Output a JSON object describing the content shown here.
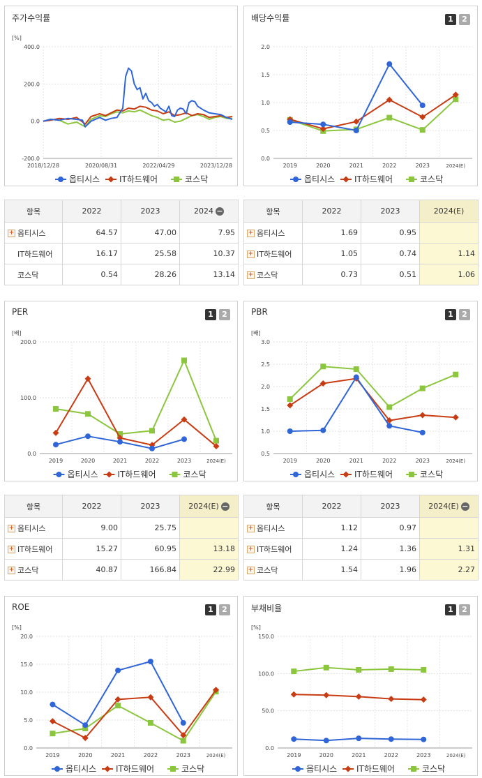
{
  "colors": {
    "opti": "#2f65d6",
    "ithw": "#c83c14",
    "kosdaq": "#8cc63e"
  },
  "legend": [
    "옵티시스",
    "IT하드웨어",
    "코스닥"
  ],
  "panels": {
    "stock": {
      "title": "주가수익률"
    },
    "dividend": {
      "title": "배당수익률",
      "btn1": "1",
      "btn2": "2"
    },
    "per": {
      "title": "PER",
      "btn1": "1",
      "btn2": "2"
    },
    "pbr": {
      "title": "PBR",
      "btn1": "1",
      "btn2": "2"
    },
    "roe": {
      "title": "ROE",
      "btn1": "1",
      "btn2": "2"
    },
    "debt": {
      "title": "부채비율",
      "btn1": "1",
      "btn2": "2"
    }
  },
  "tables": {
    "stock": {
      "headers": [
        "항목",
        "2022",
        "2023",
        "2024"
      ],
      "rows": [
        {
          "name": "옵티시스",
          "v": [
            "64.57",
            "47.00",
            "7.95"
          ]
        },
        {
          "name": "IT하드웨어",
          "v": [
            "16.17",
            "25.58",
            "10.37"
          ]
        },
        {
          "name": "코스닥",
          "v": [
            "0.54",
            "28.26",
            "13.14"
          ]
        }
      ]
    },
    "dividend": {
      "headers": [
        "항목",
        "2022",
        "2023",
        "2024(E)"
      ],
      "rows": [
        {
          "name": "옵티시스",
          "v": [
            "1.69",
            "0.95",
            ""
          ]
        },
        {
          "name": "IT하드웨어",
          "v": [
            "1.05",
            "0.74",
            "1.14"
          ]
        },
        {
          "name": "코스닥",
          "v": [
            "0.73",
            "0.51",
            "1.06"
          ]
        }
      ]
    },
    "per": {
      "headers": [
        "항목",
        "2022",
        "2023",
        "2024(E)"
      ],
      "rows": [
        {
          "name": "옵티시스",
          "v": [
            "9.00",
            "25.75",
            ""
          ]
        },
        {
          "name": "IT하드웨어",
          "v": [
            "15.27",
            "60.95",
            "13.18"
          ]
        },
        {
          "name": "코스닥",
          "v": [
            "40.87",
            "166.84",
            "22.99"
          ]
        }
      ]
    },
    "pbr": {
      "headers": [
        "항목",
        "2022",
        "2023",
        "2024(E)"
      ],
      "rows": [
        {
          "name": "옵티시스",
          "v": [
            "1.12",
            "0.97",
            ""
          ]
        },
        {
          "name": "IT하드웨어",
          "v": [
            "1.24",
            "1.36",
            "1.31"
          ]
        },
        {
          "name": "코스닥",
          "v": [
            "1.54",
            "1.96",
            "2.27"
          ]
        }
      ]
    }
  },
  "chart_data": [
    {
      "id": "stock",
      "type": "line",
      "title": "주가수익률",
      "unit": "[%]",
      "ylim": [
        -200,
        400
      ],
      "yticks": [
        "400.0",
        "200.0",
        "0.0",
        "-200.0"
      ],
      "xticks": [
        "2018/12/28",
        "2020/08/31",
        "2022/04/29",
        "2023/12/28"
      ],
      "x_range": [
        "2018/12/28",
        "2024/06"
      ],
      "series": [
        {
          "name": "옵티시스",
          "x": [
            "2018/12/28",
            "2019/03",
            "2019/06",
            "2019/09",
            "2019/12",
            "2020/02",
            "2020/03",
            "2020/05",
            "2020/08",
            "2020/10",
            "2020/12",
            "2021/02",
            "2021/04",
            "2021/05",
            "2021/06",
            "2021/07",
            "2021/08",
            "2021/09",
            "2021/10",
            "2021/11",
            "2021/12",
            "2022/01",
            "2022/02",
            "2022/03",
            "2022/04",
            "2022/05",
            "2022/06",
            "2022/07",
            "2022/08",
            "2022/09",
            "2022/10",
            "2022/11",
            "2022/12",
            "2023/01",
            "2023/02",
            "2023/03",
            "2023/04",
            "2023/05",
            "2023/06",
            "2023/08",
            "2023/10",
            "2023/12",
            "2024/02",
            "2024/04",
            "2024/06"
          ],
          "values": [
            0,
            10,
            5,
            15,
            10,
            5,
            -30,
            0,
            20,
            5,
            15,
            20,
            70,
            240,
            285,
            270,
            200,
            170,
            180,
            120,
            150,
            110,
            100,
            80,
            90,
            70,
            60,
            50,
            80,
            30,
            25,
            60,
            70,
            65,
            40,
            100,
            110,
            105,
            80,
            60,
            45,
            40,
            35,
            20,
            10
          ]
        },
        {
          "name": "IT하드웨어",
          "x": [
            "2018/12/28",
            "2019/03",
            "2019/06",
            "2019/09",
            "2019/12",
            "2020/03",
            "2020/05",
            "2020/08",
            "2020/10",
            "2020/12",
            "2021/02",
            "2021/04",
            "2021/06",
            "2021/08",
            "2021/10",
            "2021/12",
            "2022/02",
            "2022/04",
            "2022/06",
            "2022/08",
            "2022/10",
            "2022/12",
            "2023/02",
            "2023/04",
            "2023/06",
            "2023/08",
            "2023/10",
            "2023/12",
            "2024/02",
            "2024/04",
            "2024/06"
          ],
          "values": [
            0,
            5,
            15,
            10,
            20,
            -15,
            25,
            40,
            30,
            45,
            60,
            55,
            70,
            65,
            80,
            75,
            60,
            55,
            40,
            50,
            30,
            35,
            45,
            30,
            40,
            35,
            20,
            25,
            30,
            20,
            25
          ]
        },
        {
          "name": "코스닥",
          "x": [
            "2018/12/28",
            "2019/03",
            "2019/06",
            "2019/09",
            "2019/12",
            "2020/03",
            "2020/05",
            "2020/08",
            "2020/10",
            "2020/12",
            "2021/02",
            "2021/04",
            "2021/06",
            "2021/08",
            "2021/10",
            "2021/12",
            "2022/02",
            "2022/04",
            "2022/06",
            "2022/08",
            "2022/10",
            "2022/12",
            "2023/02",
            "2023/04",
            "2023/06",
            "2023/08",
            "2023/10",
            "2023/12",
            "2024/02",
            "2024/04",
            "2024/06"
          ],
          "values": [
            0,
            10,
            5,
            -15,
            -5,
            -30,
            10,
            30,
            25,
            40,
            50,
            45,
            55,
            50,
            60,
            45,
            30,
            20,
            5,
            10,
            -5,
            0,
            15,
            30,
            35,
            25,
            10,
            20,
            25,
            15,
            15
          ]
        }
      ]
    },
    {
      "id": "dividend",
      "type": "line",
      "title": "배당수익률",
      "ylim": [
        0,
        2
      ],
      "yticks": [
        "2.0",
        "1.5",
        "1.0",
        "0.5",
        "0.0"
      ],
      "categories": [
        "2019",
        "2020",
        "2021",
        "2022",
        "2023",
        "2024(E)"
      ],
      "series": [
        {
          "name": "옵티시스",
          "values": [
            0.65,
            0.61,
            0.5,
            1.69,
            0.95,
            null
          ]
        },
        {
          "name": "IT하드웨어",
          "values": [
            0.7,
            0.53,
            0.66,
            1.05,
            0.74,
            1.14
          ]
        },
        {
          "name": "코스닥",
          "values": [
            0.69,
            0.49,
            0.52,
            0.73,
            0.51,
            1.06
          ]
        }
      ]
    },
    {
      "id": "per",
      "type": "line",
      "title": "PER",
      "unit": "[배]",
      "ylim": [
        0,
        200
      ],
      "yticks": [
        "200.0",
        "100.0",
        "0.0"
      ],
      "categories": [
        "2019",
        "2020",
        "2021",
        "2022",
        "2023",
        "2024(E)"
      ],
      "series": [
        {
          "name": "옵티시스",
          "values": [
            16,
            31,
            21,
            9.0,
            25.75,
            null
          ]
        },
        {
          "name": "IT하드웨어",
          "values": [
            37,
            134,
            28,
            15.27,
            60.95,
            13.18
          ]
        },
        {
          "name": "코스닥",
          "values": [
            80,
            71,
            35,
            40.87,
            166.84,
            22.99
          ]
        }
      ]
    },
    {
      "id": "pbr",
      "type": "line",
      "title": "PBR",
      "unit": "[배]",
      "ylim": [
        0.5,
        3
      ],
      "yticks": [
        "3.0",
        "2.5",
        "2.0",
        "1.5",
        "1.0",
        "0.5"
      ],
      "categories": [
        "2019",
        "2020",
        "2021",
        "2022",
        "2023",
        "2024(E)"
      ],
      "series": [
        {
          "name": "옵티시스",
          "values": [
            1.0,
            1.02,
            2.21,
            1.12,
            0.97,
            null
          ]
        },
        {
          "name": "IT하드웨어",
          "values": [
            1.58,
            2.07,
            2.18,
            1.24,
            1.36,
            1.31
          ]
        },
        {
          "name": "코스닥",
          "values": [
            1.72,
            2.45,
            2.39,
            1.54,
            1.96,
            2.27
          ]
        }
      ]
    },
    {
      "id": "roe",
      "type": "line",
      "title": "ROE",
      "unit": "[%]",
      "ylim": [
        0,
        20
      ],
      "yticks": [
        "20.0",
        "15.0",
        "10.0",
        "5.0",
        "0.0"
      ],
      "categories": [
        "2019",
        "2020",
        "2021",
        "2022",
        "2023",
        "2024(E)"
      ],
      "series": [
        {
          "name": "옵티시스",
          "values": [
            7.8,
            4.1,
            13.9,
            15.5,
            4.5,
            null
          ]
        },
        {
          "name": "IT하드웨어",
          "values": [
            4.8,
            1.8,
            8.7,
            9.1,
            2.3,
            10.4
          ]
        },
        {
          "name": "코스닥",
          "values": [
            2.6,
            3.5,
            7.6,
            4.5,
            1.3,
            10.1
          ]
        }
      ]
    },
    {
      "id": "debt",
      "type": "line",
      "title": "부채비율",
      "unit": "[%]",
      "ylim": [
        0,
        150
      ],
      "yticks": [
        "150.0",
        "100.0",
        "50.0",
        "0.0"
      ],
      "categories": [
        "2019",
        "2020",
        "2021",
        "2022",
        "2023",
        "2024(E)"
      ],
      "series": [
        {
          "name": "옵티시스",
          "values": [
            12,
            10,
            13,
            12,
            11.5,
            null
          ]
        },
        {
          "name": "IT하드웨어",
          "values": [
            72,
            71,
            69,
            66,
            65,
            null
          ]
        },
        {
          "name": "코스닥",
          "values": [
            103,
            108,
            105,
            106,
            105,
            null
          ]
        }
      ]
    }
  ]
}
